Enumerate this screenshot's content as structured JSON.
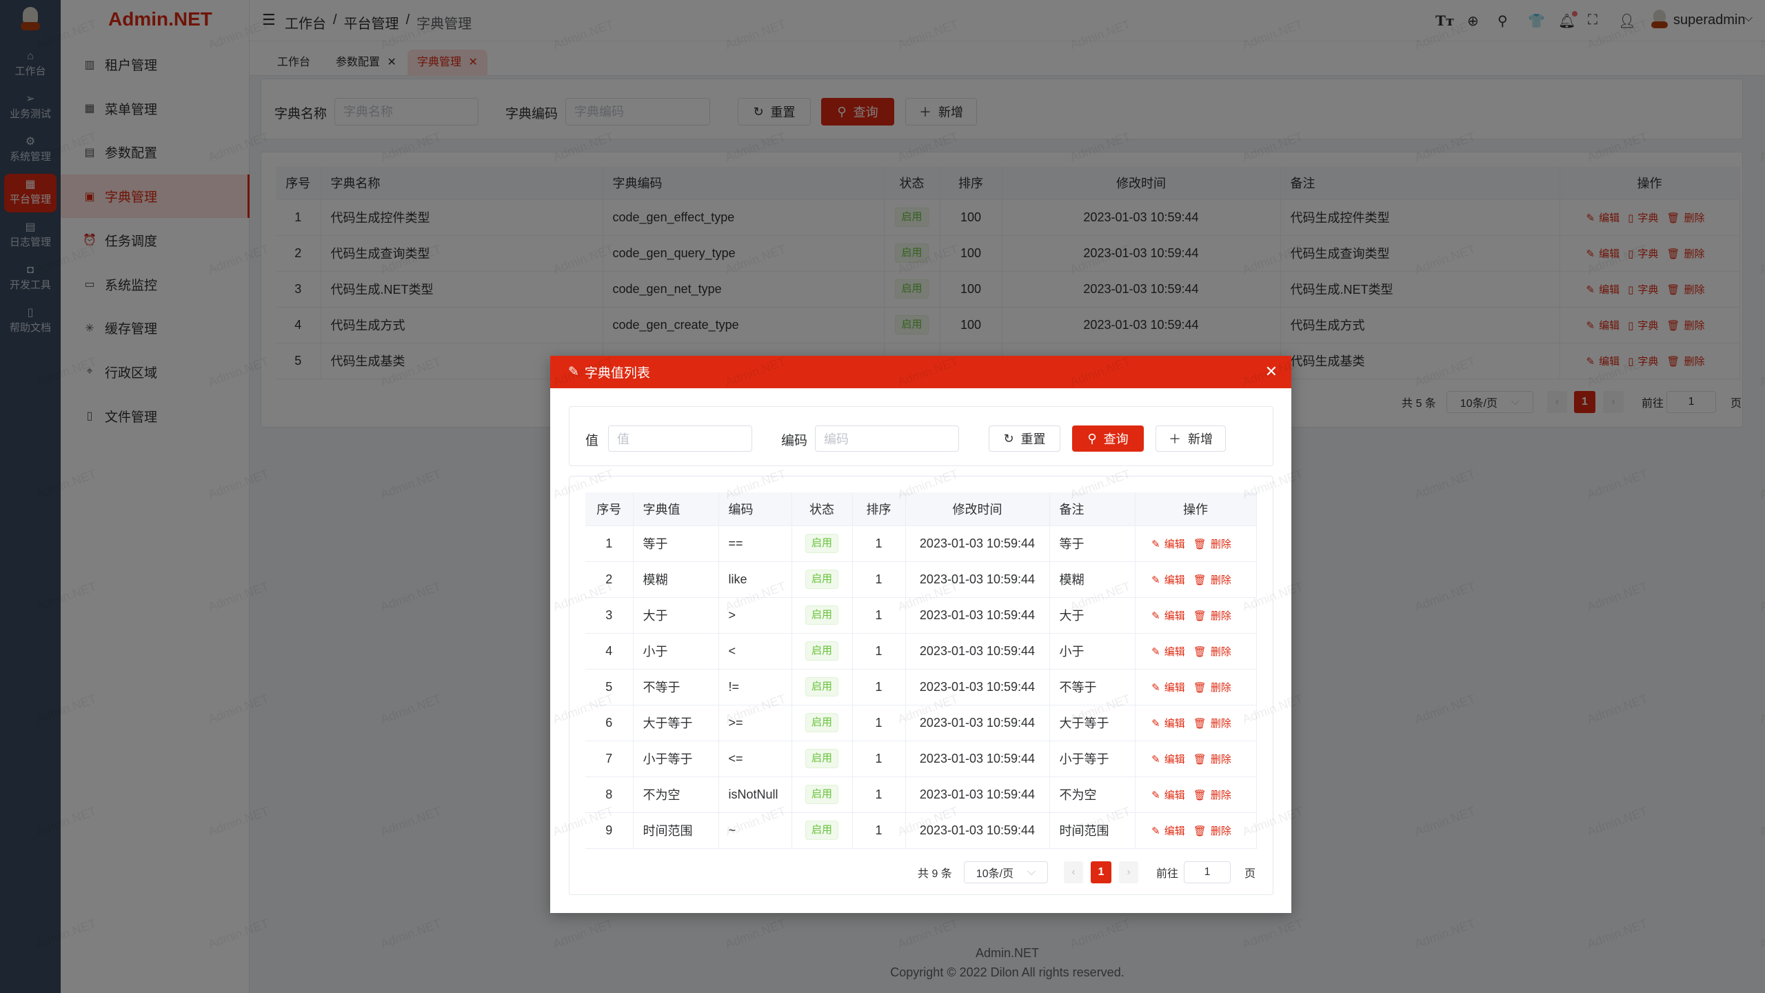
{
  "app": {
    "logo_text": "Admin.NET",
    "watermark": "Admin.NET",
    "accent": "#de2910"
  },
  "rail": [
    {
      "label": "工作台",
      "icon": "home-icon",
      "glyph": "⌂"
    },
    {
      "label": "业务测试",
      "icon": "send-icon",
      "glyph": "➢"
    },
    {
      "label": "系统管理",
      "icon": "gear-icon",
      "glyph": "⚙"
    },
    {
      "label": "平台管理",
      "icon": "grid-icon",
      "glyph": "▦",
      "active": true
    },
    {
      "label": "日志管理",
      "icon": "document-icon",
      "glyph": "▤"
    },
    {
      "label": "开发工具",
      "icon": "chip-icon",
      "glyph": "◘"
    },
    {
      "label": "帮助文档",
      "icon": "book-icon",
      "glyph": "▯"
    }
  ],
  "menu": [
    {
      "label": "租户管理",
      "icon": "building-icon",
      "glyph": "▥"
    },
    {
      "label": "菜单管理",
      "icon": "grid-icon",
      "glyph": "▦"
    },
    {
      "label": "参数配置",
      "icon": "document-icon",
      "glyph": "▤"
    },
    {
      "label": "字典管理",
      "icon": "book-icon",
      "glyph": "▣",
      "active": true
    },
    {
      "label": "任务调度",
      "icon": "alarm-icon",
      "glyph": "⏰"
    },
    {
      "label": "系统监控",
      "icon": "monitor-icon",
      "glyph": "▭"
    },
    {
      "label": "缓存管理",
      "icon": "loading-icon",
      "glyph": "✳"
    },
    {
      "label": "行政区域",
      "icon": "location-icon",
      "glyph": "⌖"
    },
    {
      "label": "文件管理",
      "icon": "file-icon",
      "glyph": "▯"
    }
  ],
  "header": {
    "breadcrumb": [
      "工作台",
      "平台管理",
      "字典管理"
    ],
    "separator": "/",
    "username": "superadmin"
  },
  "tabs": [
    {
      "label": "工作台"
    },
    {
      "label": "参数配置",
      "close": "✕"
    },
    {
      "label": "字典管理",
      "close": "✕",
      "active": true
    }
  ],
  "search": {
    "name_label": "字典名称",
    "name_placeholder": "字典名称",
    "code_label": "字典编码",
    "code_placeholder": "字典编码",
    "reset": "重置",
    "query": "查询",
    "add": "新增"
  },
  "table": {
    "headers": [
      "序号",
      "字典名称",
      "字典编码",
      "状态",
      "排序",
      "修改时间",
      "备注",
      "操作"
    ],
    "rows": [
      [
        "1",
        "代码生成控件类型",
        "code_gen_effect_type",
        "启用",
        "100",
        "2023-01-03 10:59:44",
        "代码生成控件类型"
      ],
      [
        "2",
        "代码生成查询类型",
        "code_gen_query_type",
        "启用",
        "100",
        "2023-01-03 10:59:44",
        "代码生成查询类型"
      ],
      [
        "3",
        "代码生成.NET类型",
        "code_gen_net_type",
        "启用",
        "100",
        "2023-01-03 10:59:44",
        "代码生成.NET类型"
      ],
      [
        "4",
        "代码生成方式",
        "code_gen_create_type",
        "启用",
        "100",
        "2023-01-03 10:59:44",
        "代码生成方式"
      ],
      [
        "5",
        "代码生成基类",
        "",
        "",
        "",
        "",
        "代码生成基类"
      ]
    ],
    "actions": [
      "编辑",
      "字典",
      "删除"
    ]
  },
  "pagination": {
    "total": "共 5 条",
    "page_size": "10条/页",
    "current": "1",
    "goto": "前往",
    "goto_value": "1",
    "page_unit": "页"
  },
  "modal": {
    "title": "字典值列表",
    "search": {
      "value_label": "值",
      "value_placeholder": "值",
      "code_label": "编码",
      "code_placeholder": "编码",
      "reset": "重置",
      "query": "查询",
      "add": "新增"
    },
    "table": {
      "headers": [
        "序号",
        "字典值",
        "编码",
        "状态",
        "排序",
        "修改时间",
        "备注",
        "操作"
      ],
      "rows": [
        [
          "1",
          "等于",
          "==",
          "启用",
          "1",
          "2023-01-03 10:59:44",
          "等于"
        ],
        [
          "2",
          "模糊",
          "like",
          "启用",
          "1",
          "2023-01-03 10:59:44",
          "模糊"
        ],
        [
          "3",
          "大于",
          ">",
          "启用",
          "1",
          "2023-01-03 10:59:44",
          "大于"
        ],
        [
          "4",
          "小于",
          "<",
          "启用",
          "1",
          "2023-01-03 10:59:44",
          "小于"
        ],
        [
          "5",
          "不等于",
          "!=",
          "启用",
          "1",
          "2023-01-03 10:59:44",
          "不等于"
        ],
        [
          "6",
          "大于等于",
          ">=",
          "启用",
          "1",
          "2023-01-03 10:59:44",
          "大于等于"
        ],
        [
          "7",
          "小于等于",
          "<=",
          "启用",
          "1",
          "2023-01-03 10:59:44",
          "小于等于"
        ],
        [
          "8",
          "不为空",
          "isNotNull",
          "启用",
          "1",
          "2023-01-03 10:59:44",
          "不为空"
        ],
        [
          "9",
          "时间范围",
          "~",
          "启用",
          "1",
          "2023-01-03 10:59:44",
          "时间范围"
        ]
      ],
      "actions": [
        "编辑",
        "删除"
      ]
    },
    "pagination": {
      "total": "共 9 条",
      "page_size": "10条/页",
      "current": "1",
      "goto": "前往",
      "goto_value": "1",
      "page_unit": "页"
    }
  },
  "footer": {
    "line1": "Admin.NET",
    "line2": "Copyright © 2022 Dilon All rights reserved."
  }
}
